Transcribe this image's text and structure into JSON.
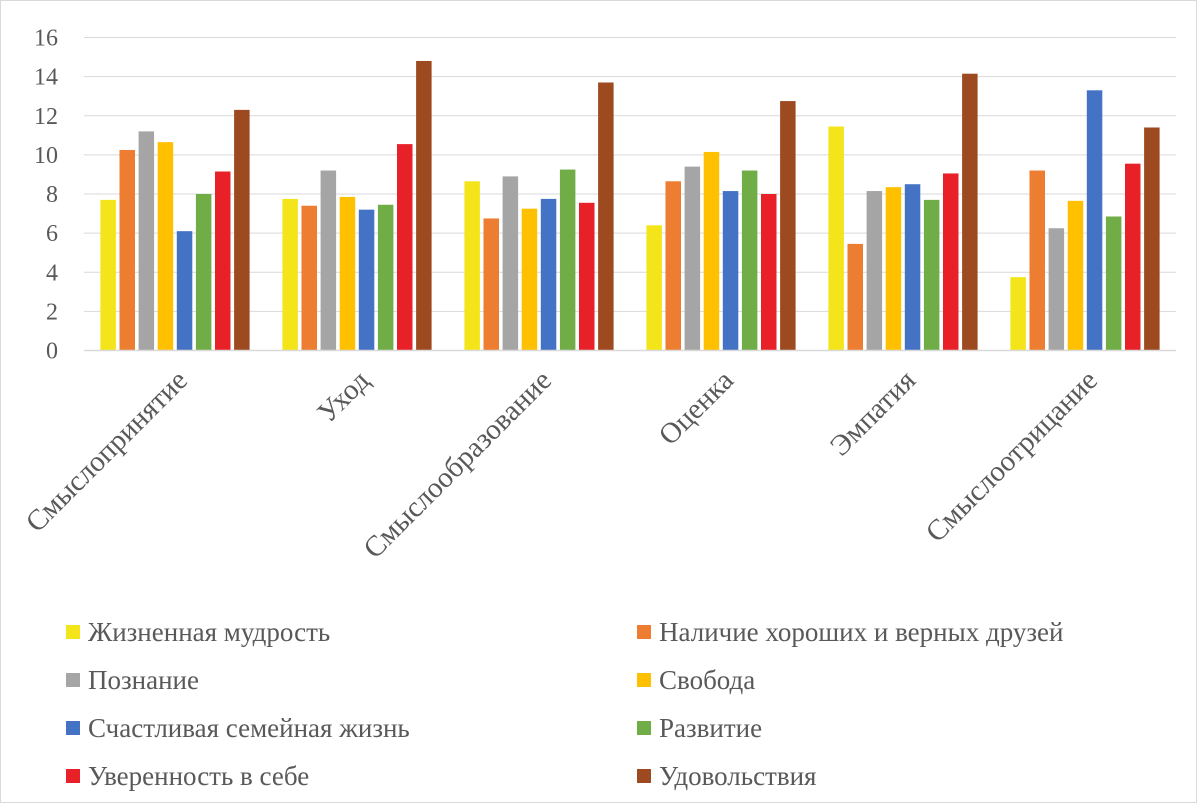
{
  "chart_data": {
    "type": "bar",
    "title": "",
    "xlabel": "",
    "ylabel": "",
    "ylim": [
      0,
      16
    ],
    "yticks": [
      "0",
      "2",
      "4",
      "6",
      "8",
      "10",
      "12",
      "14",
      "16"
    ],
    "grid": true,
    "legend_position": "bottom",
    "categories": [
      "Смыслопринятие",
      "Уход",
      "Смыслообразование",
      "Оценка",
      "Эмпатия",
      "Смыслоотрицание"
    ],
    "series": [
      {
        "name": "Жизненная мудрость",
        "color": "#f4e51b",
        "values": [
          7.7,
          7.75,
          8.65,
          6.4,
          11.45,
          3.75
        ]
      },
      {
        "name": "Наличие хороших и верных друзей",
        "color": "#ed7d31",
        "values": [
          10.25,
          7.4,
          6.75,
          8.65,
          5.45,
          9.2
        ]
      },
      {
        "name": "Познание",
        "color": "#a5a5a5",
        "values": [
          11.2,
          9.2,
          8.9,
          9.4,
          8.15,
          6.25
        ]
      },
      {
        "name": "Свобода",
        "color": "#ffc000",
        "values": [
          10.65,
          7.85,
          7.25,
          10.15,
          8.35,
          7.65
        ]
      },
      {
        "name": "Счастливая семейная жизнь",
        "color": "#4472c4",
        "values": [
          6.1,
          7.2,
          7.75,
          8.15,
          8.5,
          13.3
        ]
      },
      {
        "name": "Развитие",
        "color": "#70ad47",
        "values": [
          8.0,
          7.45,
          9.25,
          9.2,
          7.7,
          6.85
        ]
      },
      {
        "name": "Уверенность в себе",
        "color": "#e82027",
        "values": [
          9.15,
          10.55,
          7.55,
          8.0,
          9.05,
          9.55
        ]
      },
      {
        "name": "Удовольствия",
        "color": "#9e4a20",
        "values": [
          12.3,
          14.8,
          13.7,
          12.75,
          14.15,
          11.4
        ]
      }
    ]
  }
}
